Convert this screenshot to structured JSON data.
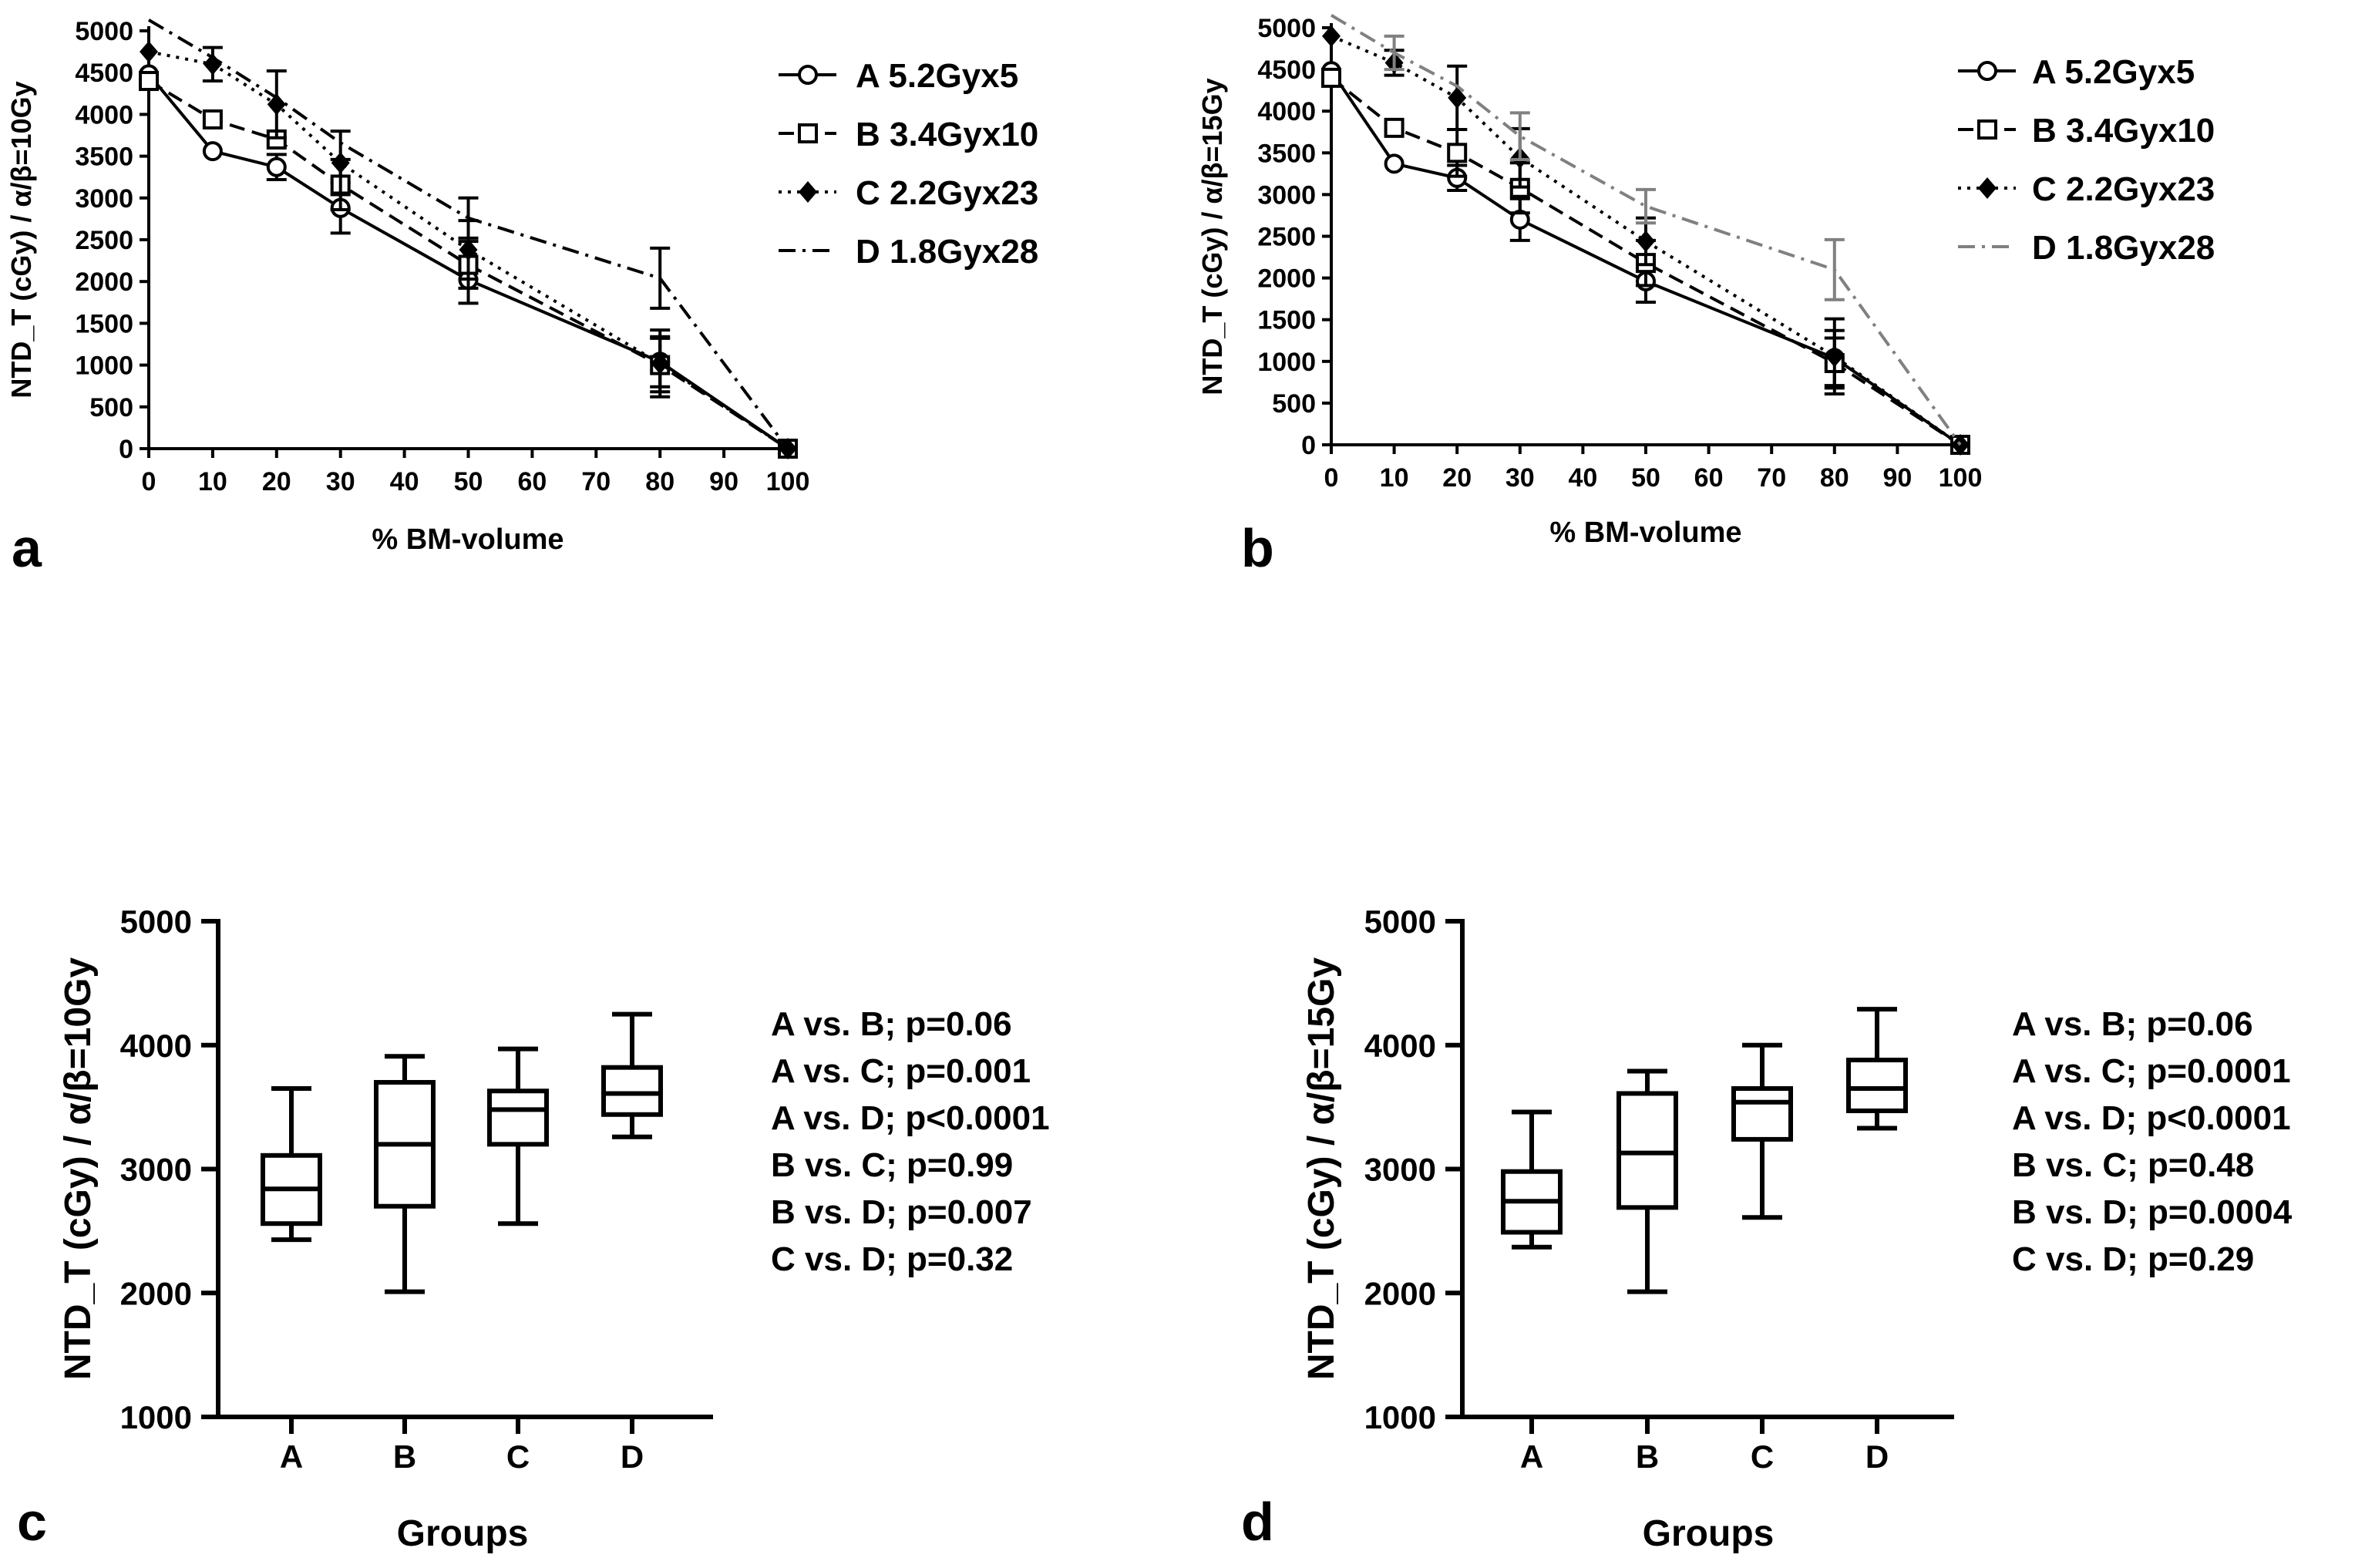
{
  "chart_data": [
    {
      "id": "a",
      "panel_label": "a",
      "type": "line",
      "xlabel": "% BM-volume",
      "ylabel": "NTD_T (cGy) / α/β=10Gy",
      "xlim": [
        0,
        100
      ],
      "ylim": [
        0,
        5000
      ],
      "xticks": [
        0,
        10,
        20,
        30,
        40,
        50,
        60,
        70,
        80,
        90,
        100
      ],
      "yticks": [
        0,
        500,
        1000,
        1500,
        2000,
        2500,
        3000,
        3500,
        4000,
        4500,
        5000
      ],
      "x": [
        0,
        10,
        20,
        30,
        50,
        80,
        100
      ],
      "series": [
        {
          "name": "A 5.2Gyx5",
          "marker": "circle",
          "style": "solid",
          "color": "#000000",
          "values": [
            4480,
            3560,
            3370,
            2880,
            2020,
            1040,
            0
          ],
          "errors": [
            0,
            0,
            150,
            300,
            280,
            300,
            0
          ]
        },
        {
          "name": "B 3.4Gyx10",
          "marker": "square",
          "style": "dashed",
          "color": "#000000",
          "values": [
            4400,
            3940,
            3700,
            3160,
            2200,
            1000,
            0
          ],
          "errors": [
            0,
            0,
            0,
            300,
            280,
            320,
            0
          ]
        },
        {
          "name": "C 2.2Gyx23",
          "marker": "diamond",
          "style": "dotted",
          "color": "#000000",
          "values": [
            4750,
            4600,
            4120,
            3420,
            2380,
            1020,
            0
          ],
          "errors": [
            0,
            200,
            400,
            380,
            350,
            400,
            0
          ]
        },
        {
          "name": "D 1.8Gyx28",
          "marker": "none",
          "style": "dashdot",
          "color": "#000000",
          "values": [
            5130,
            4680,
            4200,
            3660,
            2760,
            2040,
            0
          ],
          "errors": [
            0,
            0,
            0,
            0,
            240,
            360,
            0
          ]
        }
      ]
    },
    {
      "id": "b",
      "panel_label": "b",
      "type": "line",
      "xlabel": "% BM-volume",
      "ylabel": "NTD_T (cGy) / α/β=15Gy",
      "xlim": [
        0,
        100
      ],
      "ylim": [
        0,
        5000
      ],
      "xticks": [
        0,
        10,
        20,
        30,
        40,
        50,
        60,
        70,
        80,
        90,
        100
      ],
      "yticks": [
        0,
        500,
        1000,
        1500,
        2000,
        2500,
        3000,
        3500,
        4000,
        4500,
        5000
      ],
      "x": [
        0,
        10,
        20,
        30,
        50,
        80,
        100
      ],
      "series": [
        {
          "name": "A 5.2Gyx5",
          "marker": "circle",
          "style": "solid",
          "color": "#000000",
          "values": [
            4480,
            3370,
            3200,
            2700,
            1960,
            1040,
            0
          ],
          "errors": [
            0,
            0,
            150,
            250,
            250,
            330,
            0
          ]
        },
        {
          "name": "B 3.4Gyx10",
          "marker": "square",
          "style": "dashed",
          "color": "#000000",
          "values": [
            4400,
            3800,
            3500,
            3080,
            2180,
            980,
            0
          ],
          "errors": [
            0,
            0,
            280,
            300,
            270,
            300,
            0
          ]
        },
        {
          "name": "C 2.2Gyx23",
          "marker": "diamond",
          "style": "dotted",
          "color": "#000000",
          "values": [
            4900,
            4580,
            4160,
            3440,
            2440,
            1060,
            0
          ],
          "errors": [
            0,
            150,
            380,
            350,
            280,
            450,
            0
          ]
        },
        {
          "name": "D 1.8Gyx28",
          "marker": "none",
          "style": "dashdot",
          "color": "#808080",
          "values": [
            5150,
            4700,
            4300,
            3700,
            2860,
            2100,
            0
          ],
          "errors": [
            0,
            200,
            0,
            280,
            200,
            360,
            0
          ]
        }
      ]
    },
    {
      "id": "c",
      "panel_label": "c",
      "type": "box",
      "xlabel": "Groups",
      "ylabel": "NTD_T (cGy) / α/β=10Gy",
      "ylim": [
        1000,
        5000
      ],
      "yticks": [
        1000,
        2000,
        3000,
        4000,
        5000
      ],
      "categories": [
        "A",
        "B",
        "C",
        "D"
      ],
      "boxes": [
        {
          "min": 2430,
          "q1": 2560,
          "median": 2840,
          "q3": 3110,
          "max": 3650
        },
        {
          "min": 2010,
          "q1": 2700,
          "median": 3200,
          "q3": 3700,
          "max": 3910
        },
        {
          "min": 2560,
          "q1": 3200,
          "median": 3480,
          "q3": 3630,
          "max": 3970
        },
        {
          "min": 3260,
          "q1": 3440,
          "median": 3610,
          "q3": 3820,
          "max": 4250
        }
      ],
      "annotations": [
        "A vs. B; p=0.06",
        "A vs. C; p=0.001",
        "A vs. D; p<0.0001",
        "B vs. C; p=0.99",
        "B vs. D; p=0.007",
        "C vs. D; p=0.32"
      ]
    },
    {
      "id": "d",
      "panel_label": "d",
      "type": "box",
      "xlabel": "Groups",
      "ylabel": "NTD_T (cGy) / α/β=15Gy",
      "ylim": [
        1000,
        5000
      ],
      "yticks": [
        1000,
        2000,
        3000,
        4000,
        5000
      ],
      "categories": [
        "A",
        "B",
        "C",
        "D"
      ],
      "boxes": [
        {
          "min": 2370,
          "q1": 2490,
          "median": 2740,
          "q3": 2980,
          "max": 3460
        },
        {
          "min": 2010,
          "q1": 2690,
          "median": 3130,
          "q3": 3610,
          "max": 3790
        },
        {
          "min": 2610,
          "q1": 3240,
          "median": 3540,
          "q3": 3650,
          "max": 4000
        },
        {
          "min": 3330,
          "q1": 3470,
          "median": 3650,
          "q3": 3880,
          "max": 4290
        }
      ],
      "annotations": [
        "A vs. B; p=0.06",
        "A vs. C; p=0.0001",
        "A vs. D; p<0.0001",
        "B vs. C; p=0.48",
        "B vs. D; p=0.0004",
        "C vs. D; p=0.29"
      ]
    }
  ]
}
